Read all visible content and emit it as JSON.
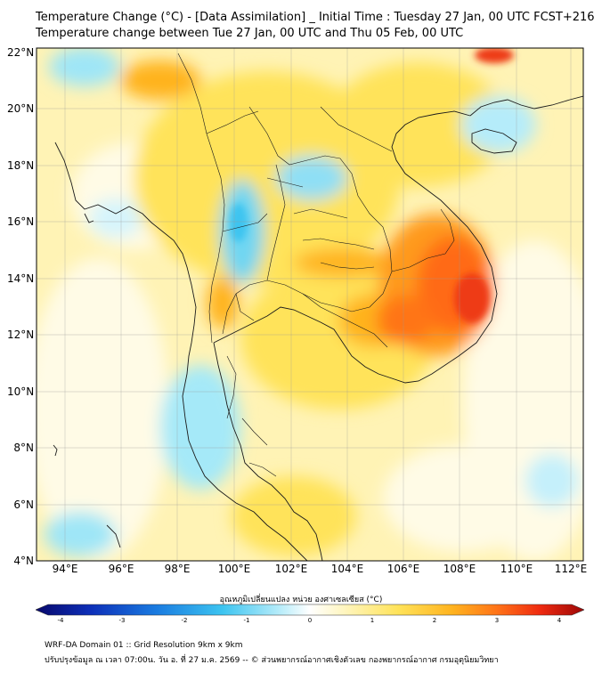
{
  "title_line1": "Temperature Change (°C) - [Data Assimilation] _ Initial Time : Tuesday 27 Jan, 00 UTC FCST+216",
  "title_line2": "Temperature change between Tue 27 Jan, 00 UTC and Thu 05 Feb, 00 UTC",
  "lat_labels": [
    "22°N",
    "20°N",
    "18°N",
    "16°N",
    "14°N",
    "12°N",
    "10°N",
    "8°N",
    "6°N",
    "4°N"
  ],
  "lon_labels": [
    "94°E",
    "96°E",
    "98°E",
    "100°E",
    "102°E",
    "104°E",
    "106°E",
    "108°E",
    "110°E",
    "112°E"
  ],
  "colorbar": {
    "label": "อุณหภูมิเปลี่ยนแปลง หน่วย องศาเซลเซียส (°C)",
    "ticks": [
      "-4",
      "-3",
      "-2",
      "-1",
      "0",
      "1",
      "2",
      "3",
      "4"
    ],
    "colors": [
      "#08086b",
      "#0d2fb8",
      "#1a7be0",
      "#3cc4f0",
      "#bdeefa",
      "#ffffff",
      "#fff6c2",
      "#ffe35a",
      "#ffb31f",
      "#ff7418",
      "#ee2a10",
      "#9c0707"
    ]
  },
  "footer_line1": "WRF-DA Domain 01 :: Grid Resolution 9km x 9km",
  "footer_line2": "ปรับปรุงข้อมูล ณ เวลา 07:00น. วัน อ. ที่ 27 ม.ค. 2569 -- © ส่วนพยากรณ์อากาศเชิงตัวเลข กองพยากรณ์อากาศ กรมอุตุนิยมวิทยา"
}
